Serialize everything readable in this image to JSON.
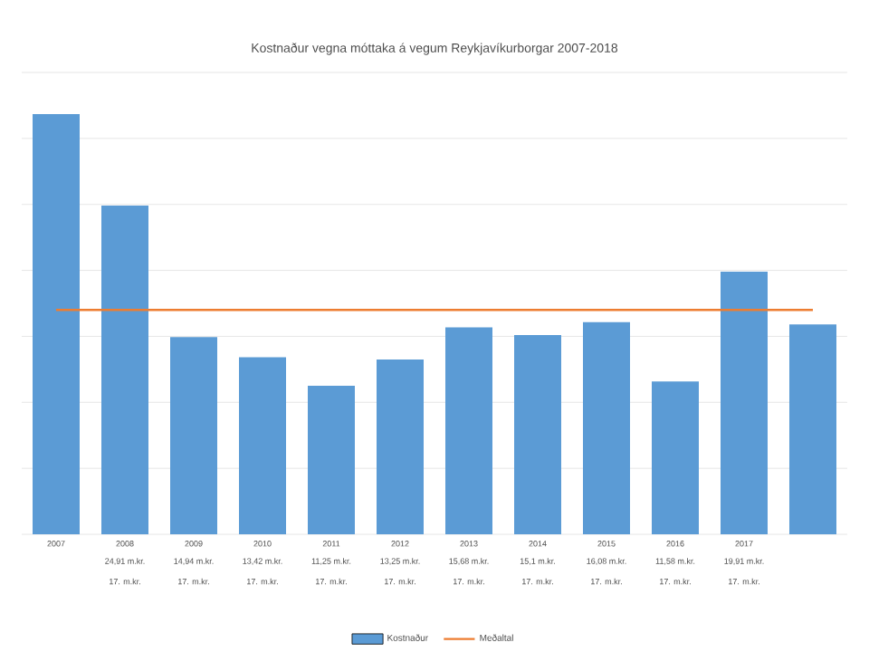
{
  "chart_data": {
    "type": "bar",
    "title": "Kostnaður vegna móttaka á vegum Reykjavíkurborgar 2007-2018",
    "categories": [
      "2007",
      "2008",
      "2009",
      "2010",
      "2011",
      "2012",
      "2013",
      "2014",
      "2015",
      "2016",
      "2017",
      null
    ],
    "series": [
      {
        "name": "Kostnaður",
        "color": "#5b9bd5",
        "values": [
          31.85,
          24.91,
          14.94,
          13.42,
          11.25,
          13.25,
          15.68,
          15.1,
          16.08,
          11.58,
          19.91,
          15.9
        ],
        "value_labels": [
          null,
          "24,91 m.kr.",
          "14,94 m.kr.",
          "13,42 m.kr.",
          "11,25 m.kr.",
          "13,25 m.kr.",
          "15,68 m.kr.",
          "15,1 m.kr.",
          "16,08 m.kr.",
          "11,58 m.kr.",
          "19,91 m.kr.",
          null
        ]
      },
      {
        "name": "Meðaltal",
        "type": "line",
        "color": "#ed7d31",
        "values": [
          17,
          17,
          17,
          17,
          17,
          17,
          17,
          17,
          17,
          17,
          17,
          17
        ],
        "value_labels": [
          null,
          "17. m.kr.",
          "17. m.kr.",
          "17. m.kr.",
          "17. m.kr.",
          "17. m.kr.",
          "17. m.kr.",
          "17. m.kr.",
          "17. m.kr.",
          "17. m.kr.",
          "17. m.kr.",
          null
        ]
      }
    ],
    "ylim": [
      0,
      35
    ],
    "yticks": [
      {
        "value": 0,
        "label": null
      },
      {
        "value": 5,
        "label": null
      },
      {
        "value": 10,
        "label": null
      },
      {
        "value": 15,
        "label": null
      },
      {
        "value": 20,
        "label": null
      },
      {
        "value": 25,
        "label": null
      },
      {
        "value": 30,
        "label": null
      },
      {
        "value": 35,
        "label": null
      }
    ],
    "grid": "y",
    "legend": "bottom",
    "tick_labels": "x"
  }
}
